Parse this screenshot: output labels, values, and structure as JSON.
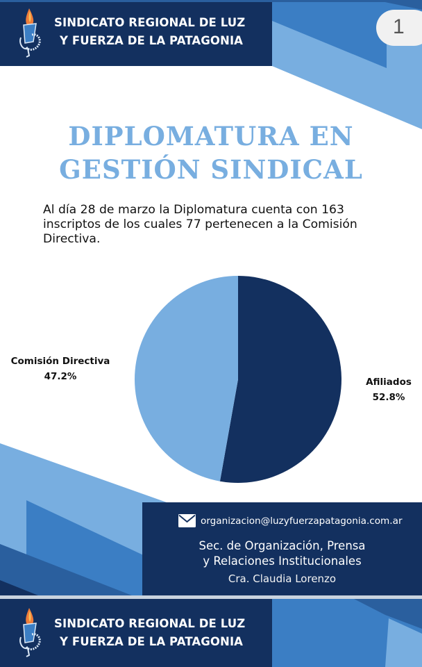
{
  "header": {
    "org_line1": "SINDICATO REGIONAL DE LUZ",
    "org_line2": "Y FUERZA DE LA PATAGONIA",
    "logo_icon": "torch-logo-icon",
    "page_badge": "1"
  },
  "title": {
    "line1": "DIPLOMATURA EN",
    "line2": "GESTIÓN SINDICAL"
  },
  "intro": {
    "text": "Al día 28 de marzo la Diplomatura cuenta con 163 inscriptos de los cuales 77 pertenecen a la Comisión Directiva."
  },
  "chart_data": {
    "type": "pie",
    "title": "",
    "categories": [
      "Afiliados",
      "Comisión Directiva"
    ],
    "values": [
      52.8,
      47.2
    ],
    "counts_context": {
      "total_inscriptos": 163,
      "comision_directiva": 77
    },
    "colors": [
      "#13305f",
      "#78aee0"
    ],
    "labels": [
      {
        "name": "Comisión Directiva",
        "value_label": "47.2%",
        "position": "left"
      },
      {
        "name": "Afiliados",
        "value_label": "52.8%",
        "position": "right"
      }
    ],
    "start_angle": "12 o'clock, clockwise",
    "legend": "none (direct labels)"
  },
  "contact": {
    "email_icon": "envelope-icon",
    "email": "organizacion@luzyfuerzapatagonia.com.ar",
    "sec_line1": "Sec. de Organización, Prensa",
    "sec_line2": "y Relaciones Institucionales",
    "name": "Cra. Claudia Lorenzo"
  },
  "footer": {
    "org_line1": "SINDICATO REGIONAL DE LUZ",
    "org_line2": "Y FUERZA DE LA PATAGONIA"
  },
  "colors": {
    "navy": "#13305f",
    "mid_blue": "#3b7ec4",
    "light_blue": "#78aee0",
    "steel_blue": "#2a5f9e",
    "badge_bg": "#f1f1f1"
  }
}
